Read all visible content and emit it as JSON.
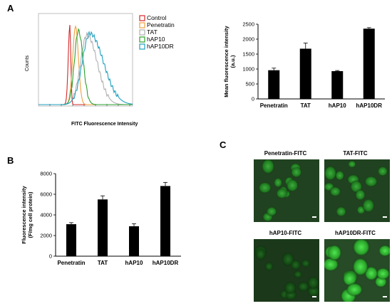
{
  "panels": {
    "a": "A",
    "b": "B",
    "c": "C"
  },
  "flow": {
    "ylabel": "Counts",
    "xlabel": "FITC Fluorescence Intensity",
    "legend": [
      {
        "label": "Control",
        "color": "#d62728"
      },
      {
        "label": "Penetratin",
        "color": "#f0a040"
      },
      {
        "label": "TAT",
        "color": "#b0b0b0"
      },
      {
        "label": "hAP10",
        "color": "#2ca02c"
      },
      {
        "label": "hAP10DR",
        "color": "#1f9fbf"
      }
    ]
  },
  "chart_data": [
    {
      "type": "bar",
      "panel": "A",
      "categories": [
        "Penetratin",
        "TAT",
        "hAP10",
        "hAP10DR"
      ],
      "values": [
        960,
        1680,
        930,
        2350
      ],
      "errors": [
        70,
        190,
        20,
        35
      ],
      "ylabel": "Mean fluorescence intensity (a.u.)",
      "ylabel_lines": [
        "Mean fluorescence intensity",
        "(a.u.)"
      ],
      "ylim": [
        0,
        2500
      ],
      "yticks": [
        "0",
        "500",
        "1000",
        "1500",
        "2000",
        "2500"
      ],
      "grid": false
    },
    {
      "type": "bar",
      "panel": "B",
      "categories": [
        "Penetratin",
        "TAT",
        "hAP10",
        "hAP10DR"
      ],
      "values": [
        3100,
        5500,
        2900,
        6800
      ],
      "errors": [
        150,
        350,
        250,
        350
      ],
      "ylabel": "Fluorescence intensity (F/mg cell protein)",
      "ylabel_lines": [
        "Fluorescence intensity",
        "(F/mg cell protein)"
      ],
      "ylim": [
        0,
        8000
      ],
      "yticks": [
        "0",
        "2000",
        "4000",
        "6000",
        "8000"
      ],
      "grid": false
    }
  ],
  "micrographs": [
    {
      "label": "Penetratin-FITC",
      "brightness": "medium"
    },
    {
      "label": "TAT-FITC",
      "brightness": "medium"
    },
    {
      "label": "hAP10-FITC",
      "brightness": "low"
    },
    {
      "label": "hAP10DR-FITC",
      "brightness": "high"
    }
  ]
}
